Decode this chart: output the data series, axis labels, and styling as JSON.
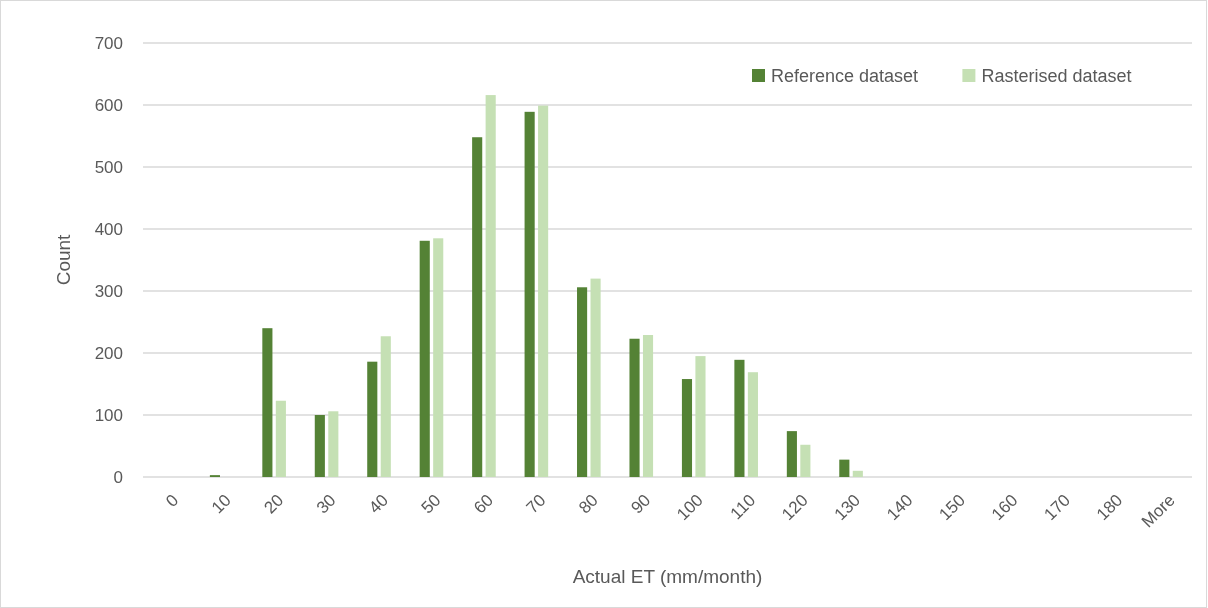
{
  "chart_data": {
    "type": "bar",
    "xlabel": "Actual ET (mm/month)",
    "ylabel": "Count",
    "categories": [
      "0",
      "10",
      "20",
      "30",
      "40",
      "50",
      "60",
      "70",
      "80",
      "90",
      "100",
      "110",
      "120",
      "130",
      "140",
      "150",
      "160",
      "170",
      "180",
      "More"
    ],
    "series": [
      {
        "name": "Reference dataset",
        "color": "#548235",
        "values": [
          0,
          3,
          240,
          100,
          186,
          381,
          548,
          589,
          306,
          223,
          158,
          189,
          74,
          28,
          0,
          0,
          0,
          0,
          0,
          0
        ]
      },
      {
        "name": "Rasterised dataset",
        "color": "#c5e0b4",
        "values": [
          0,
          0,
          123,
          106,
          227,
          385,
          616,
          599,
          320,
          229,
          195,
          169,
          52,
          10,
          0,
          0,
          0,
          0,
          0,
          0
        ]
      }
    ],
    "ylim": [
      0,
      700
    ],
    "yticks": [
      0,
      100,
      200,
      300,
      400,
      500,
      600,
      700
    ],
    "grid": "y",
    "legend": "top right"
  }
}
